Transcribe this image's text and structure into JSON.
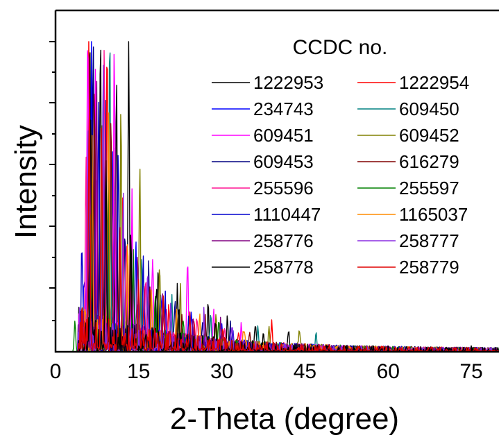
{
  "chart_data": {
    "type": "line",
    "title": "",
    "xlabel": "2-Theta (degree)",
    "ylabel": "Intensity",
    "xlim": [
      0,
      80
    ],
    "x_ticks": [
      0,
      15,
      30,
      45,
      60,
      75
    ],
    "y_ticks_shown": false,
    "grid": false,
    "legend_title": "CCDC no.",
    "legend_position": "top-right",
    "series": [
      {
        "name": "1222953",
        "color": "#000000",
        "peaks": [
          [
            6.2,
            100
          ],
          [
            8.1,
            95
          ],
          [
            11.0,
            90
          ],
          [
            13.2,
            100
          ],
          [
            18.5,
            25
          ],
          [
            22.0,
            18
          ],
          [
            27.5,
            14
          ],
          [
            31.0,
            10
          ],
          [
            36.0,
            8
          ],
          [
            42.0,
            6
          ]
        ]
      },
      {
        "name": "1222954",
        "color": "#ff0000",
        "peaks": [
          [
            6.0,
            100
          ],
          [
            9.3,
            100
          ],
          [
            12.1,
            40
          ],
          [
            16.0,
            20
          ],
          [
            20.5,
            12
          ],
          [
            25.0,
            9
          ],
          [
            39.0,
            9
          ],
          [
            33.0,
            6
          ]
        ]
      },
      {
        "name": "234743",
        "color": "#0000ff",
        "peaks": [
          [
            5.2,
            22
          ],
          [
            6.5,
            100
          ],
          [
            10.3,
            55
          ],
          [
            14.5,
            30
          ],
          [
            19.0,
            18
          ],
          [
            24.5,
            12
          ],
          [
            30.0,
            8
          ]
        ]
      },
      {
        "name": "609450",
        "color": "#008080",
        "peaks": [
          [
            7.5,
            60
          ],
          [
            9.8,
            100
          ],
          [
            15.5,
            28
          ],
          [
            21.0,
            15
          ],
          [
            28.0,
            12
          ],
          [
            36.5,
            8
          ],
          [
            47.0,
            6
          ]
        ]
      },
      {
        "name": "609451",
        "color": "#ff00ff",
        "peaks": [
          [
            5.8,
            100
          ],
          [
            7.2,
            90
          ],
          [
            10.6,
            100
          ],
          [
            13.8,
            45
          ],
          [
            17.5,
            30
          ],
          [
            23.8,
            28
          ],
          [
            28.5,
            12
          ],
          [
            33.5,
            8
          ]
        ]
      },
      {
        "name": "609452",
        "color": "#808000",
        "peaks": [
          [
            8.4,
            70
          ],
          [
            11.8,
            80
          ],
          [
            15.2,
            60
          ],
          [
            18.8,
            25
          ],
          [
            22.5,
            18
          ],
          [
            29.0,
            10
          ],
          [
            38.5,
            8
          ],
          [
            44.0,
            6
          ]
        ]
      },
      {
        "name": "609453",
        "color": "#000080",
        "peaks": [
          [
            6.8,
            100
          ],
          [
            9.0,
            80
          ],
          [
            12.5,
            35
          ],
          [
            16.8,
            22
          ],
          [
            21.5,
            14
          ],
          [
            26.5,
            9
          ],
          [
            31.5,
            7
          ]
        ]
      },
      {
        "name": "616279",
        "color": "#800000",
        "peaks": [
          [
            7.0,
            85
          ],
          [
            10.0,
            70
          ],
          [
            13.5,
            40
          ],
          [
            17.0,
            20
          ],
          [
            22.8,
            12
          ],
          [
            27.0,
            8
          ],
          [
            35.0,
            6
          ]
        ]
      },
      {
        "name": "255596",
        "color": "#ff1493",
        "peaks": [
          [
            5.5,
            60
          ],
          [
            8.8,
            100
          ],
          [
            12.8,
            35
          ],
          [
            16.3,
            22
          ],
          [
            20.0,
            14
          ],
          [
            25.5,
            10
          ],
          [
            30.5,
            7
          ]
        ]
      },
      {
        "name": "255597",
        "color": "#008000",
        "peaks": [
          [
            3.5,
            10
          ],
          [
            6.3,
            45
          ],
          [
            9.5,
            55
          ],
          [
            14.0,
            25
          ],
          [
            18.0,
            16
          ],
          [
            23.0,
            10
          ],
          [
            29.5,
            7
          ]
        ]
      },
      {
        "name": "1110447",
        "color": "#0000cd",
        "peaks": [
          [
            4.8,
            30
          ],
          [
            7.8,
            80
          ],
          [
            11.3,
            60
          ],
          [
            15.8,
            25
          ],
          [
            19.8,
            15
          ],
          [
            24.0,
            10
          ],
          [
            32.0,
            7
          ]
        ]
      },
      {
        "name": "1165037",
        "color": "#ff8c00",
        "peaks": [
          [
            6.6,
            65
          ],
          [
            9.6,
            75
          ],
          [
            13.0,
            35
          ],
          [
            17.3,
            18
          ],
          [
            21.8,
            11
          ],
          [
            26.0,
            8
          ],
          [
            34.0,
            6
          ]
        ]
      },
      {
        "name": "258776",
        "color": "#800080",
        "peaks": [
          [
            7.4,
            90
          ],
          [
            10.8,
            65
          ],
          [
            14.8,
            30
          ],
          [
            19.3,
            18
          ],
          [
            24.8,
            11
          ],
          [
            29.8,
            8
          ]
        ]
      },
      {
        "name": "258777",
        "color": "#8a2be2",
        "peaks": [
          [
            5.9,
            70
          ],
          [
            8.6,
            85
          ],
          [
            12.2,
            45
          ],
          [
            16.6,
            24
          ],
          [
            20.8,
            15
          ],
          [
            26.8,
            10
          ],
          [
            31.8,
            7
          ]
        ]
      },
      {
        "name": "258778",
        "color": "#000000",
        "peaks": [
          [
            6.4,
            75
          ],
          [
            9.1,
            60
          ],
          [
            13.6,
            38
          ],
          [
            18.2,
            20
          ],
          [
            22.2,
            13
          ],
          [
            28.8,
            9
          ],
          [
            37.5,
            6
          ]
        ]
      },
      {
        "name": "258779",
        "color": "#e00000",
        "peaks": [
          [
            6.1,
            80
          ],
          [
            8.3,
            70
          ],
          [
            11.6,
            40
          ],
          [
            15.0,
            22
          ],
          [
            19.5,
            13
          ],
          [
            24.2,
            9
          ],
          [
            30.2,
            6
          ]
        ]
      }
    ]
  }
}
